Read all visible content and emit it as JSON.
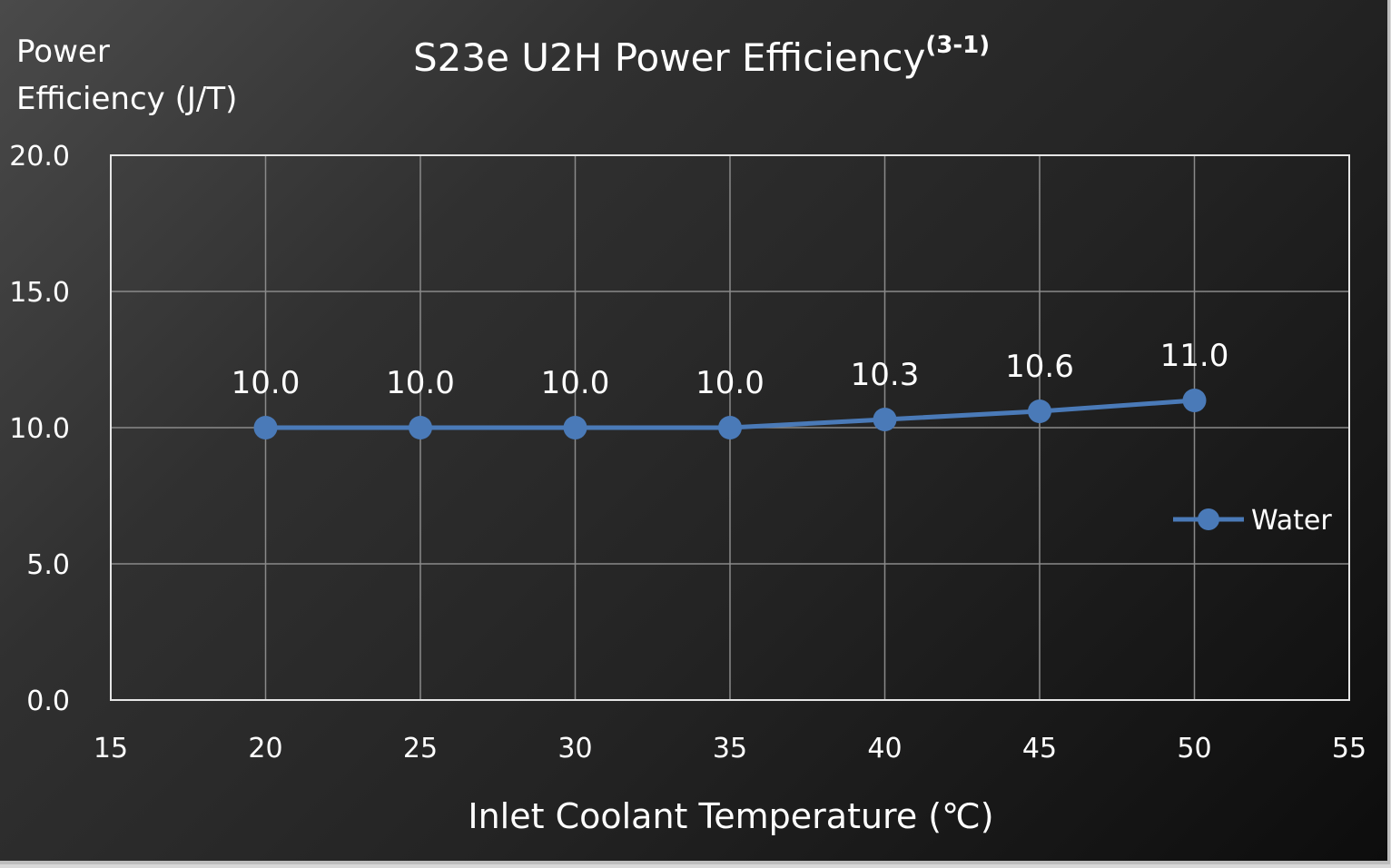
{
  "chart_data": {
    "type": "line",
    "title": "S23e U2H Power Efficiency",
    "title_superscript": "(3-1)",
    "ylabel_line1": "Power",
    "ylabel_line2": "Efficiency (J/T)",
    "xlabel": "Inlet Coolant Temperature (℃)",
    "xlim": [
      15,
      55
    ],
    "ylim": [
      0,
      20
    ],
    "xticks": [
      "15",
      "20",
      "25",
      "30",
      "35",
      "40",
      "45",
      "50",
      "55"
    ],
    "yticks": [
      "0.0",
      "5.0",
      "10.0",
      "15.0",
      "20.0"
    ],
    "grid": true,
    "legend_position": "right",
    "series": [
      {
        "name": "Water",
        "color": "#4a7ab8",
        "x": [
          20,
          25,
          30,
          35,
          40,
          45,
          50
        ],
        "y": [
          10.0,
          10.0,
          10.0,
          10.0,
          10.3,
          10.6,
          11.0
        ],
        "labels": [
          "10.0",
          "10.0",
          "10.0",
          "10.0",
          "10.3",
          "10.6",
          "11.0"
        ]
      }
    ]
  }
}
